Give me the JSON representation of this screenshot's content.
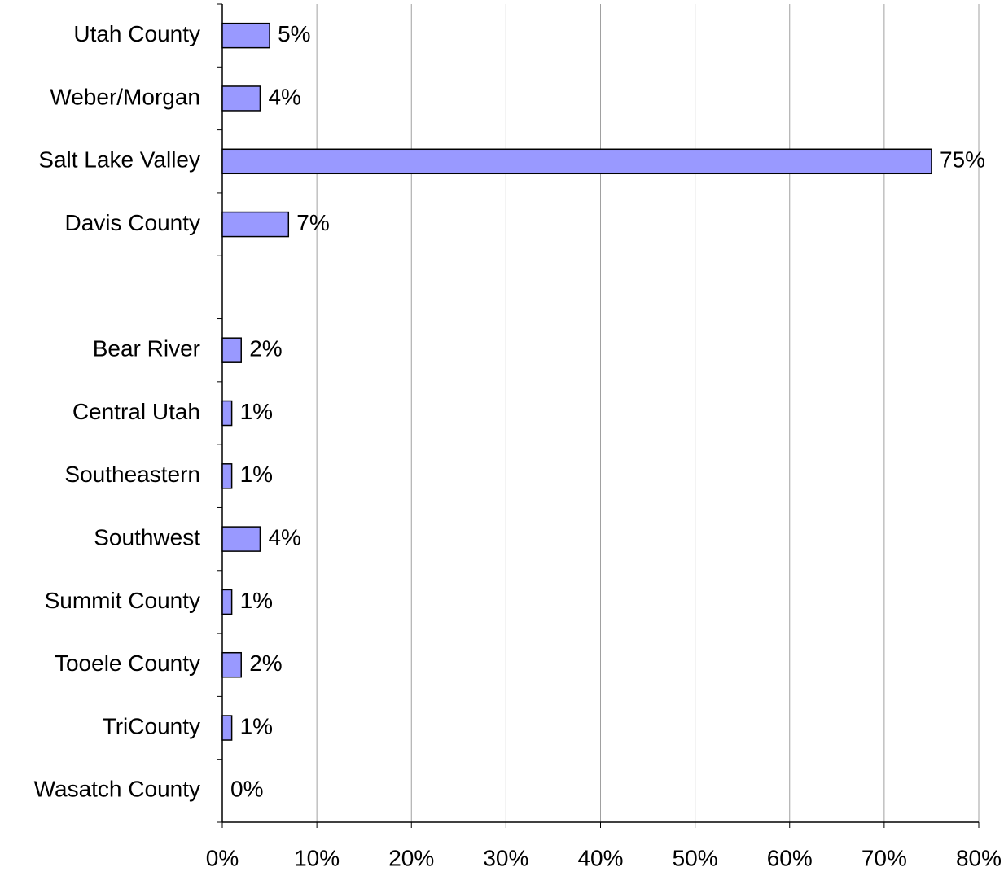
{
  "chart_data": {
    "type": "bar",
    "orientation": "horizontal",
    "categories": [
      "Utah County",
      "Weber/Morgan",
      "Salt Lake Valley",
      "Davis County",
      null,
      "Bear River",
      "Central Utah",
      "Southeastern",
      "Southwest",
      "Summit County",
      "Tooele County",
      "TriCounty",
      "Wasatch County"
    ],
    "values": [
      5,
      4,
      75,
      7,
      null,
      2,
      1,
      1,
      4,
      1,
      2,
      1,
      0
    ],
    "value_labels": [
      "5%",
      "4%",
      "75%",
      "7%",
      null,
      "2%",
      "1%",
      "1%",
      "4%",
      "1%",
      "2%",
      "1%",
      "0%"
    ],
    "color": "#9999ff",
    "xlim": [
      0,
      80
    ],
    "xticks": [
      {
        "value": 0,
        "label": "0%"
      },
      {
        "value": 10,
        "label": "10%"
      },
      {
        "value": 20,
        "label": "20%"
      },
      {
        "value": 30,
        "label": "30%"
      },
      {
        "value": 40,
        "label": "40%"
      },
      {
        "value": 50,
        "label": "50%"
      },
      {
        "value": 60,
        "label": "60%"
      },
      {
        "value": 70,
        "label": "70%"
      },
      {
        "value": 80,
        "label": "80%"
      }
    ],
    "grid": true
  }
}
